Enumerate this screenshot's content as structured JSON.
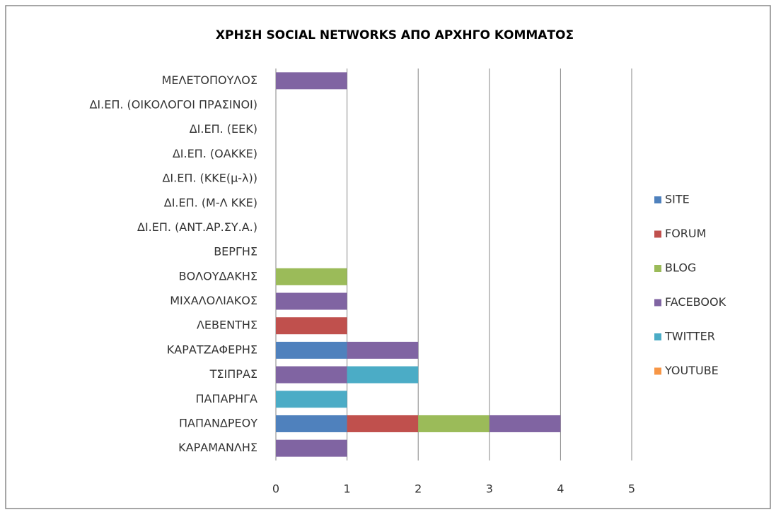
{
  "chart_data": {
    "type": "stacked-bar-horizontal",
    "title": "ΧΡΗΣΗ SOCIAL NETWORKS ΑΠΟ ΑΡΧΗΓΟ ΚΟΜΜΑΤΟΣ",
    "categories": [
      "ΜΕΛΕΤΟΠΟΥΛΟΣ",
      "ΔΙ.ΕΠ. (ΟΙΚΟΛΟΓΟΙ ΠΡΑΣΙΝΟΙ)",
      "ΔΙ.ΕΠ. (ΕΕΚ)",
      "ΔΙ.ΕΠ. (ΟΑΚΚΕ)",
      "ΔΙ.ΕΠ. (ΚΚΕ(μ-λ))",
      "ΔΙ.ΕΠ. (Μ-Λ ΚΚΕ)",
      "ΔΙ.ΕΠ. (ΑΝΤ.ΑΡ.ΣΥ.Α.)",
      "ΒΕΡΓΗΣ",
      "ΒΟΛΟΥΔΑΚΗΣ",
      "ΜΙΧΑΛΟΛΙΑΚΟΣ",
      "ΛΕΒΕΝΤΗΣ",
      "ΚΑΡΑΤΖΑΦΕΡΗΣ",
      "ΤΣΙΠΡΑΣ",
      "ΠΑΠΑΡΗΓΑ",
      "ΠΑΠΑΝΔΡΕΟΥ",
      "ΚΑΡΑΜΑΝΛΗΣ"
    ],
    "series": [
      {
        "name": "SITE",
        "color": "#4f81bd",
        "values": [
          0,
          0,
          0,
          0,
          0,
          0,
          0,
          0,
          0,
          0,
          0,
          1,
          0,
          0,
          1,
          0
        ]
      },
      {
        "name": "FORUM",
        "color": "#c0504d",
        "values": [
          0,
          0,
          0,
          0,
          0,
          0,
          0,
          0,
          0,
          0,
          1,
          0,
          0,
          0,
          1,
          0
        ]
      },
      {
        "name": "BLOG",
        "color": "#9bbb59",
        "values": [
          0,
          0,
          0,
          0,
          0,
          0,
          0,
          0,
          1,
          0,
          0,
          0,
          0,
          0,
          1,
          0
        ]
      },
      {
        "name": "FACEBOOK",
        "color": "#8064a2",
        "values": [
          1,
          0,
          0,
          0,
          0,
          0,
          0,
          0,
          0,
          1,
          0,
          1,
          1,
          0,
          1,
          1
        ]
      },
      {
        "name": "TWITTER",
        "color": "#4bacc6",
        "values": [
          0,
          0,
          0,
          0,
          0,
          0,
          0,
          0,
          0,
          0,
          0,
          0,
          1,
          1,
          0,
          0
        ]
      },
      {
        "name": "YOUTUBE",
        "color": "#f79646",
        "values": [
          0,
          0,
          0,
          0,
          0,
          0,
          0,
          0,
          0,
          0,
          0,
          0,
          0,
          0,
          0,
          0
        ]
      }
    ],
    "xlim": [
      0,
      5
    ],
    "xticks": [
      0,
      1,
      2,
      3,
      4,
      5
    ],
    "grid": true,
    "legend": "right"
  }
}
